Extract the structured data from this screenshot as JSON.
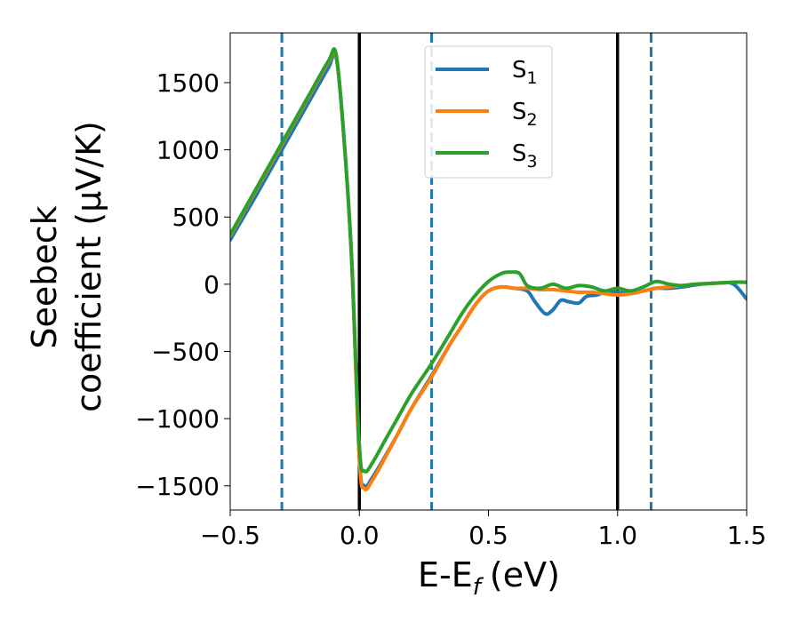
{
  "chart_data": {
    "type": "line",
    "xlabel": "E-E",
    "xlabel_sub": "f",
    "xlabel_unit": "(eV)",
    "ylabel_line1": "Seebeck",
    "ylabel_line2": "coefficient  (μV/K)",
    "xlim": [
      -0.5,
      1.5
    ],
    "ylim": [
      -1680,
      1870
    ],
    "xticks": [
      -0.5,
      0.0,
      0.5,
      1.0,
      1.5
    ],
    "xtick_labels": [
      "−0.5",
      "0.0",
      "0.5",
      "1.0",
      "1.5"
    ],
    "yticks": [
      -1500,
      -1000,
      -500,
      0,
      500,
      1000,
      1500
    ],
    "ytick_labels": [
      "−1500",
      "−1000",
      "−500",
      "0",
      "500",
      "1000",
      "1500"
    ],
    "grid": false,
    "legend_position": "top-center",
    "vlines": [
      {
        "x": -0.3,
        "style": "dashed",
        "color": "#1f77b4"
      },
      {
        "x": 0.28,
        "style": "dashed",
        "color": "#1f77b4"
      },
      {
        "x": 1.13,
        "style": "dashed",
        "color": "#1f77b4"
      },
      {
        "x": 0.0,
        "style": "solid",
        "color": "#000000"
      },
      {
        "x": 1.0,
        "style": "solid",
        "color": "#000000"
      }
    ],
    "series": [
      {
        "name": "S",
        "sub": "1",
        "color": "#1f77b4",
        "x": [
          -0.5,
          -0.4,
          -0.3,
          -0.2,
          -0.12,
          -0.09,
          -0.06,
          -0.03,
          0.0,
          0.02,
          0.05,
          0.1,
          0.15,
          0.2,
          0.28,
          0.35,
          0.4,
          0.45,
          0.5,
          0.55,
          0.6,
          0.65,
          0.68,
          0.72,
          0.75,
          0.78,
          0.81,
          0.85,
          0.88,
          0.92,
          0.95,
          1.0,
          1.05,
          1.1,
          1.15,
          1.2,
          1.25,
          1.3,
          1.35,
          1.4,
          1.45,
          1.5
        ],
        "y": [
          330,
          660,
          1000,
          1340,
          1610,
          1690,
          1100,
          200,
          -1290,
          -1500,
          -1440,
          -1280,
          -1110,
          -930,
          -680,
          -450,
          -300,
          -150,
          -50,
          -20,
          -30,
          -50,
          -130,
          -220,
          -190,
          -120,
          -130,
          -140,
          -90,
          -80,
          -60,
          -60,
          -70,
          -50,
          -30,
          -30,
          -20,
          -5,
          5,
          10,
          0,
          -110
        ]
      },
      {
        "name": "S",
        "sub": "2",
        "color": "#ff7f0e",
        "x": [
          -0.5,
          -0.4,
          -0.3,
          -0.2,
          -0.12,
          -0.09,
          -0.06,
          -0.03,
          0.0,
          0.02,
          0.05,
          0.1,
          0.15,
          0.2,
          0.28,
          0.35,
          0.4,
          0.45,
          0.5,
          0.55,
          0.6,
          0.65,
          0.7,
          0.75,
          0.8,
          0.85,
          0.9,
          0.95,
          1.0,
          1.05,
          1.1,
          1.15,
          1.2,
          1.25,
          1.3,
          1.35,
          1.4,
          1.45,
          1.5
        ],
        "y": [
          360,
          700,
          1040,
          1380,
          1650,
          1700,
          1100,
          200,
          -1300,
          -1520,
          -1460,
          -1290,
          -1110,
          -930,
          -690,
          -450,
          -300,
          -150,
          -50,
          -20,
          -30,
          -30,
          -40,
          -40,
          -50,
          -60,
          -60,
          -70,
          -80,
          -70,
          -50,
          -30,
          -20,
          -10,
          0,
          5,
          10,
          15,
          15
        ]
      },
      {
        "name": "S",
        "sub": "3",
        "color": "#2ca02c",
        "x": [
          -0.5,
          -0.4,
          -0.3,
          -0.2,
          -0.12,
          -0.09,
          -0.06,
          -0.03,
          0.0,
          0.02,
          0.05,
          0.1,
          0.15,
          0.2,
          0.28,
          0.35,
          0.4,
          0.45,
          0.5,
          0.55,
          0.58,
          0.62,
          0.65,
          0.7,
          0.75,
          0.8,
          0.85,
          0.9,
          0.95,
          1.0,
          1.05,
          1.1,
          1.15,
          1.2,
          1.25,
          1.3,
          1.35,
          1.4,
          1.45,
          1.5
        ],
        "y": [
          370,
          710,
          1050,
          1390,
          1660,
          1710,
          1100,
          200,
          -1200,
          -1390,
          -1330,
          -1160,
          -990,
          -820,
          -590,
          -370,
          -210,
          -80,
          20,
          80,
          90,
          80,
          -10,
          -30,
          0,
          -30,
          -10,
          -20,
          -50,
          -30,
          -50,
          -20,
          20,
          0,
          -10,
          0,
          5,
          10,
          15,
          15
        ]
      }
    ]
  }
}
